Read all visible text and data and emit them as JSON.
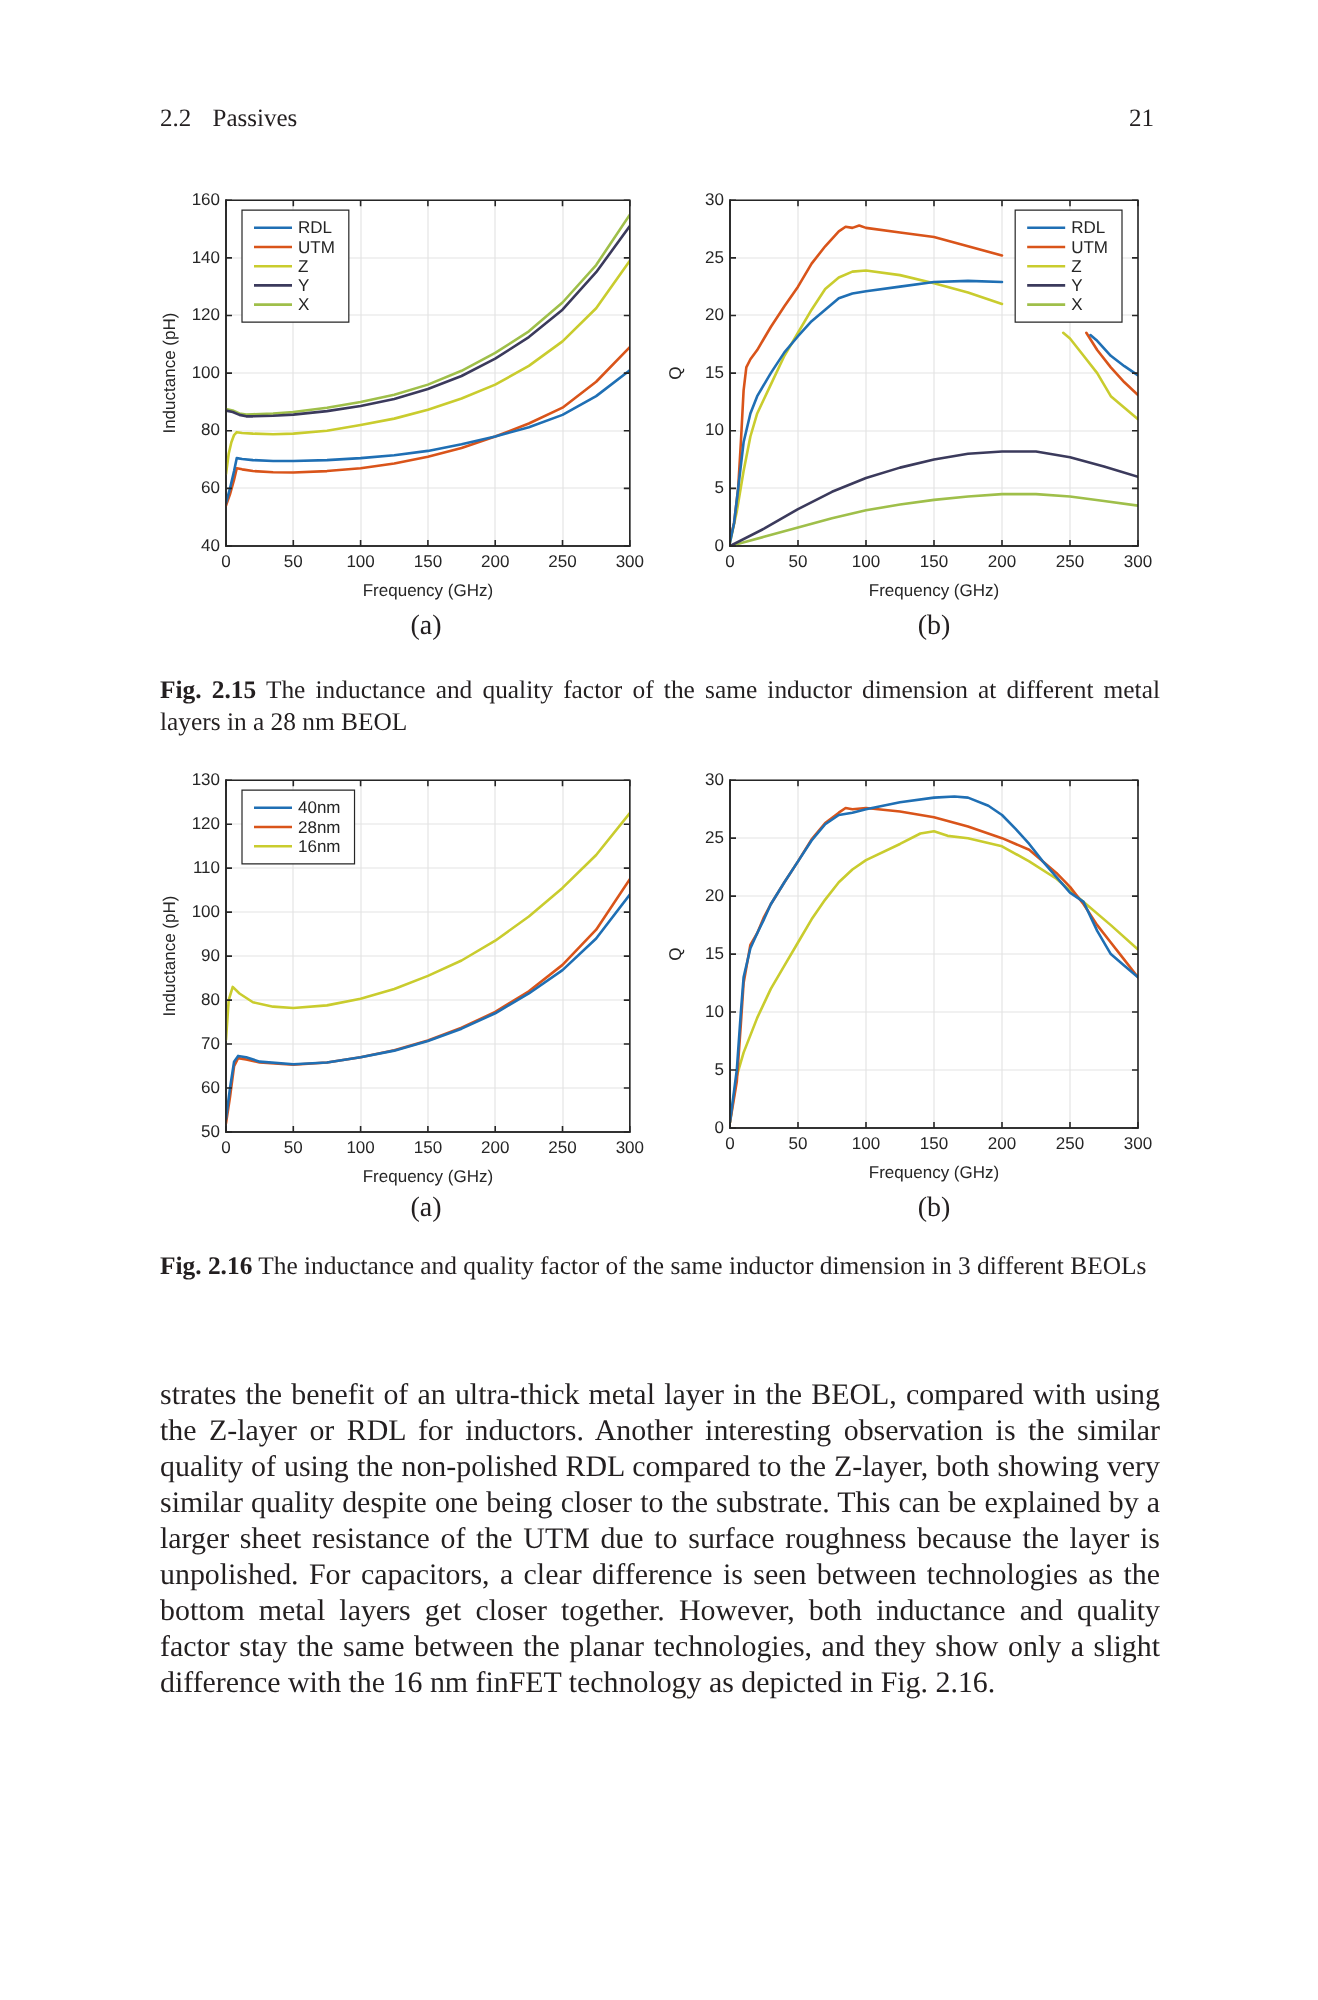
{
  "chart_data": [
    {
      "type": "line",
      "xlabel": "Frequency (GHz)",
      "ylabel": "Inductance (pH)",
      "xlim": [
        0,
        300
      ],
      "xticks": [
        0,
        50,
        100,
        150,
        200,
        250,
        300
      ],
      "ylim": [
        40,
        160
      ],
      "yticks": [
        40,
        60,
        80,
        100,
        120,
        140,
        160
      ],
      "grid": true,
      "legend": "top left",
      "series": [
        {
          "name": "RDL",
          "color": "#1f6fb4",
          "x": [
            0,
            3,
            6,
            8,
            12,
            20,
            35,
            50,
            75,
            100,
            125,
            150,
            175,
            200,
            225,
            250,
            275,
            300
          ],
          "values": [
            55,
            60,
            66,
            70.5,
            70.2,
            69.8,
            69.5,
            69.5,
            69.8,
            70.5,
            71.5,
            73,
            75.3,
            78,
            81.2,
            85.5,
            92,
            101
          ]
        },
        {
          "name": "UTM",
          "color": "#d9541a",
          "x": [
            0,
            3,
            6,
            8,
            12,
            20,
            35,
            50,
            75,
            100,
            125,
            150,
            175,
            200,
            225,
            250,
            275,
            300
          ],
          "values": [
            54,
            58,
            63,
            67,
            66.6,
            66,
            65.6,
            65.5,
            66,
            67,
            68.6,
            71,
            74,
            78,
            82.5,
            88,
            97,
            109
          ]
        },
        {
          "name": "Z",
          "color": "#c9cc2e",
          "x": [
            0,
            2,
            4,
            6,
            8,
            12,
            20,
            35,
            50,
            75,
            100,
            125,
            150,
            175,
            200,
            225,
            250,
            275,
            300
          ],
          "values": [
            65,
            72,
            76,
            78.5,
            79.5,
            79.2,
            79,
            78.8,
            79,
            80,
            82,
            84.2,
            87.3,
            91.2,
            96,
            102.5,
            111,
            122.5,
            139
          ]
        },
        {
          "name": "Y",
          "color": "#3b3a5c",
          "x": [
            0,
            5,
            10,
            15,
            20,
            35,
            50,
            75,
            100,
            125,
            150,
            175,
            200,
            225,
            250,
            275,
            300
          ],
          "values": [
            87,
            86.5,
            85.5,
            85,
            85,
            85.2,
            85.6,
            86.8,
            88.6,
            91,
            94.5,
            99,
            105,
            112.5,
            122,
            135,
            151
          ]
        },
        {
          "name": "X",
          "color": "#9fbf4a",
          "x": [
            0,
            5,
            10,
            15,
            20,
            35,
            50,
            75,
            100,
            125,
            150,
            175,
            200,
            225,
            250,
            275,
            300
          ],
          "values": [
            87.5,
            87,
            86,
            85.6,
            85.7,
            86,
            86.5,
            88,
            90,
            92.5,
            96,
            100.8,
            107,
            114.5,
            124.5,
            137.5,
            155
          ]
        }
      ],
      "annotations": [
        "2.2 Passives",
        "21",
        "(a)"
      ]
    },
    {
      "type": "line",
      "xlabel": "Frequency (GHz)",
      "ylabel": "Q",
      "xlim": [
        0,
        300
      ],
      "xticks": [
        0,
        50,
        100,
        150,
        200,
        250,
        300
      ],
      "ylim": [
        0,
        30
      ],
      "yticks": [
        0,
        5,
        10,
        15,
        20,
        25,
        30
      ],
      "grid": true,
      "legend": "top right",
      "series": [
        {
          "name": "RDL",
          "color": "#1f6fb4",
          "x": [
            0,
            3,
            6,
            10,
            15,
            20,
            30,
            40,
            50,
            60,
            70,
            80,
            90,
            100,
            125,
            150,
            175,
            200,
            230,
            265,
            270,
            280,
            290,
            300
          ],
          "values": [
            0.3,
            2,
            5,
            9,
            11.5,
            13,
            15,
            16.8,
            18.2,
            19.5,
            20.5,
            21.5,
            21.9,
            22.1,
            22.5,
            22.9,
            23,
            22.9,
            null,
            18.3,
            17.8,
            16.5,
            15.6,
            14.8
          ]
        },
        {
          "name": "UTM",
          "color": "#d9541a",
          "x": [
            0,
            3,
            6,
            8,
            10,
            12,
            15,
            20,
            25,
            30,
            40,
            50,
            60,
            70,
            80,
            85,
            90,
            95,
            100,
            125,
            150,
            175,
            200,
            230,
            262,
            270,
            280,
            290,
            300
          ],
          "values": [
            0.5,
            2,
            5,
            9,
            13.5,
            15.5,
            16.2,
            17,
            18,
            19,
            20.8,
            22.5,
            24.5,
            26,
            27.3,
            27.7,
            27.6,
            27.8,
            27.6,
            27.2,
            26.8,
            26,
            25.2,
            null,
            18.5,
            17,
            15.5,
            14.2,
            13.1
          ]
        },
        {
          "name": "Z",
          "color": "#c9cc2e",
          "x": [
            0,
            5,
            10,
            15,
            20,
            30,
            40,
            50,
            60,
            70,
            80,
            90,
            100,
            125,
            150,
            175,
            200,
            225,
            245,
            250,
            260,
            270,
            280,
            290,
            300
          ],
          "values": [
            0.3,
            3,
            6.5,
            9.5,
            11.5,
            14,
            16.5,
            18.5,
            20.5,
            22.3,
            23.3,
            23.8,
            23.9,
            23.5,
            22.8,
            22,
            21,
            null,
            18.5,
            18,
            16.5,
            15,
            13,
            12,
            11
          ]
        },
        {
          "name": "Y",
          "color": "#3b3a5c",
          "x": [
            0,
            25,
            50,
            75,
            100,
            125,
            150,
            175,
            200,
            225,
            250,
            275,
            300
          ],
          "values": [
            0,
            1.5,
            3.2,
            4.7,
            5.9,
            6.8,
            7.5,
            8,
            8.2,
            8.2,
            7.7,
            6.9,
            6
          ]
        },
        {
          "name": "X",
          "color": "#9fbf4a",
          "x": [
            0,
            25,
            50,
            75,
            100,
            125,
            150,
            175,
            200,
            225,
            250,
            275,
            300
          ],
          "values": [
            0,
            0.8,
            1.6,
            2.4,
            3.1,
            3.6,
            4,
            4.3,
            4.5,
            4.5,
            4.3,
            3.9,
            3.5
          ]
        }
      ],
      "annotations": [
        "(b)",
        "Fig. 2.15 The inductance and quality factor of the same inductor dimension at different metal layers in a 28 nm BEOL"
      ]
    },
    {
      "type": "line",
      "xlabel": "Frequency (GHz)",
      "ylabel": "Inductance (pH)",
      "xlim": [
        0,
        300
      ],
      "xticks": [
        0,
        50,
        100,
        150,
        200,
        250,
        300
      ],
      "ylim": [
        50,
        130
      ],
      "yticks": [
        50,
        60,
        70,
        80,
        90,
        100,
        110,
        120,
        130
      ],
      "grid": true,
      "legend": "top left",
      "series": [
        {
          "name": "40nm",
          "color": "#1f6fb4",
          "x": [
            0,
            3,
            6,
            9,
            15,
            25,
            50,
            75,
            100,
            125,
            150,
            175,
            200,
            225,
            250,
            275,
            300
          ],
          "values": [
            53,
            60,
            66,
            67.3,
            67,
            66,
            65.4,
            65.8,
            67,
            68.5,
            70.7,
            73.5,
            77,
            81.5,
            86.8,
            94,
            104
          ]
        },
        {
          "name": "28nm",
          "color": "#d9541a",
          "x": [
            0,
            3,
            6,
            9,
            15,
            25,
            50,
            75,
            100,
            125,
            150,
            175,
            200,
            225,
            250,
            275,
            300
          ],
          "values": [
            52,
            58,
            65,
            66.8,
            66.5,
            65.8,
            65.3,
            65.8,
            67,
            68.6,
            70.8,
            73.7,
            77.3,
            82,
            88,
            96,
            107.5
          ]
        },
        {
          "name": "16nm",
          "color": "#c9cc2e",
          "x": [
            0,
            2,
            5,
            10,
            20,
            35,
            50,
            75,
            100,
            125,
            150,
            175,
            200,
            225,
            250,
            275,
            300
          ],
          "values": [
            71,
            80,
            83,
            81.5,
            79.5,
            78.5,
            78.2,
            78.8,
            80.3,
            82.5,
            85.5,
            89,
            93.5,
            99,
            105.5,
            113,
            122.5
          ]
        }
      ],
      "annotations": [
        "(a)"
      ]
    },
    {
      "type": "line",
      "xlabel": "Frequency (GHz)",
      "ylabel": "Q",
      "xlim": [
        0,
        300
      ],
      "xticks": [
        0,
        50,
        100,
        150,
        200,
        250,
        300
      ],
      "ylim": [
        0,
        30
      ],
      "yticks": [
        0,
        5,
        10,
        15,
        20,
        25,
        30
      ],
      "grid": true,
      "series": [
        {
          "color": "#1f6fb4",
          "x": [
            0,
            5,
            8,
            10,
            15,
            20,
            25,
            30,
            40,
            50,
            60,
            70,
            80,
            90,
            100,
            125,
            150,
            165,
            175,
            190,
            200,
            210,
            220,
            230,
            250,
            260,
            270,
            280,
            290,
            300
          ],
          "values": [
            0.5,
            5,
            10,
            13,
            15.5,
            16.8,
            18,
            19.3,
            21.2,
            23,
            24.8,
            26.2,
            27,
            27.2,
            27.5,
            28.1,
            28.5,
            28.6,
            28.5,
            27.8,
            27,
            25.8,
            24.5,
            23,
            20.3,
            19.5,
            17,
            15,
            14,
            13
          ]
        },
        {
          "color": "#d9541a",
          "x": [
            0,
            5,
            8,
            10,
            15,
            20,
            25,
            30,
            40,
            50,
            60,
            70,
            80,
            85,
            90,
            100,
            125,
            150,
            175,
            200,
            220,
            240,
            250,
            260,
            270,
            280,
            290,
            300
          ],
          "values": [
            0.5,
            4,
            9,
            12.5,
            15.8,
            16.8,
            18.2,
            19.3,
            21.2,
            23,
            24.9,
            26.3,
            27.2,
            27.6,
            27.5,
            27.6,
            27.3,
            26.8,
            26,
            25,
            24,
            22,
            20.8,
            19.3,
            17.5,
            16,
            14.5,
            13
          ]
        },
        {
          "color": "#c9cc2e",
          "x": [
            0,
            5,
            10,
            20,
            30,
            40,
            50,
            60,
            70,
            80,
            90,
            100,
            125,
            140,
            150,
            160,
            175,
            200,
            220,
            240,
            260,
            280,
            300
          ],
          "values": [
            0.5,
            4.5,
            6.5,
            9.5,
            12,
            14,
            16,
            18,
            19.7,
            21.2,
            22.3,
            23.1,
            24.5,
            25.4,
            25.6,
            25.2,
            25,
            24.3,
            23,
            21.5,
            19.5,
            17.5,
            15.4
          ]
        }
      ],
      "annotations": [
        "(b)",
        "Fig. 2.16 The inductance and quality factor of the same inductor dimension in 3 different BEOLs",
        "strates the benefit of an ultra-thick metal layer in the BEOL, compared with using the Z-layer or RDL for inductors. Another interesting observation is the similar quality of using the non-polished RDL compared to the Z-layer, both showing very similar quality despite one being closer to the substrate. This can be explained by a larger sheet resistance of the UTM due to surface roughness because the layer is unpolished. For capacitors, a clear difference is seen between technologies as the bottom metal layers get closer together. However, both inductance and quality factor stay the same between the planar technologies, and they show only a slight difference with the 16 nm finFET technology as depicted in Fig. 2.16."
      ]
    }
  ]
}
